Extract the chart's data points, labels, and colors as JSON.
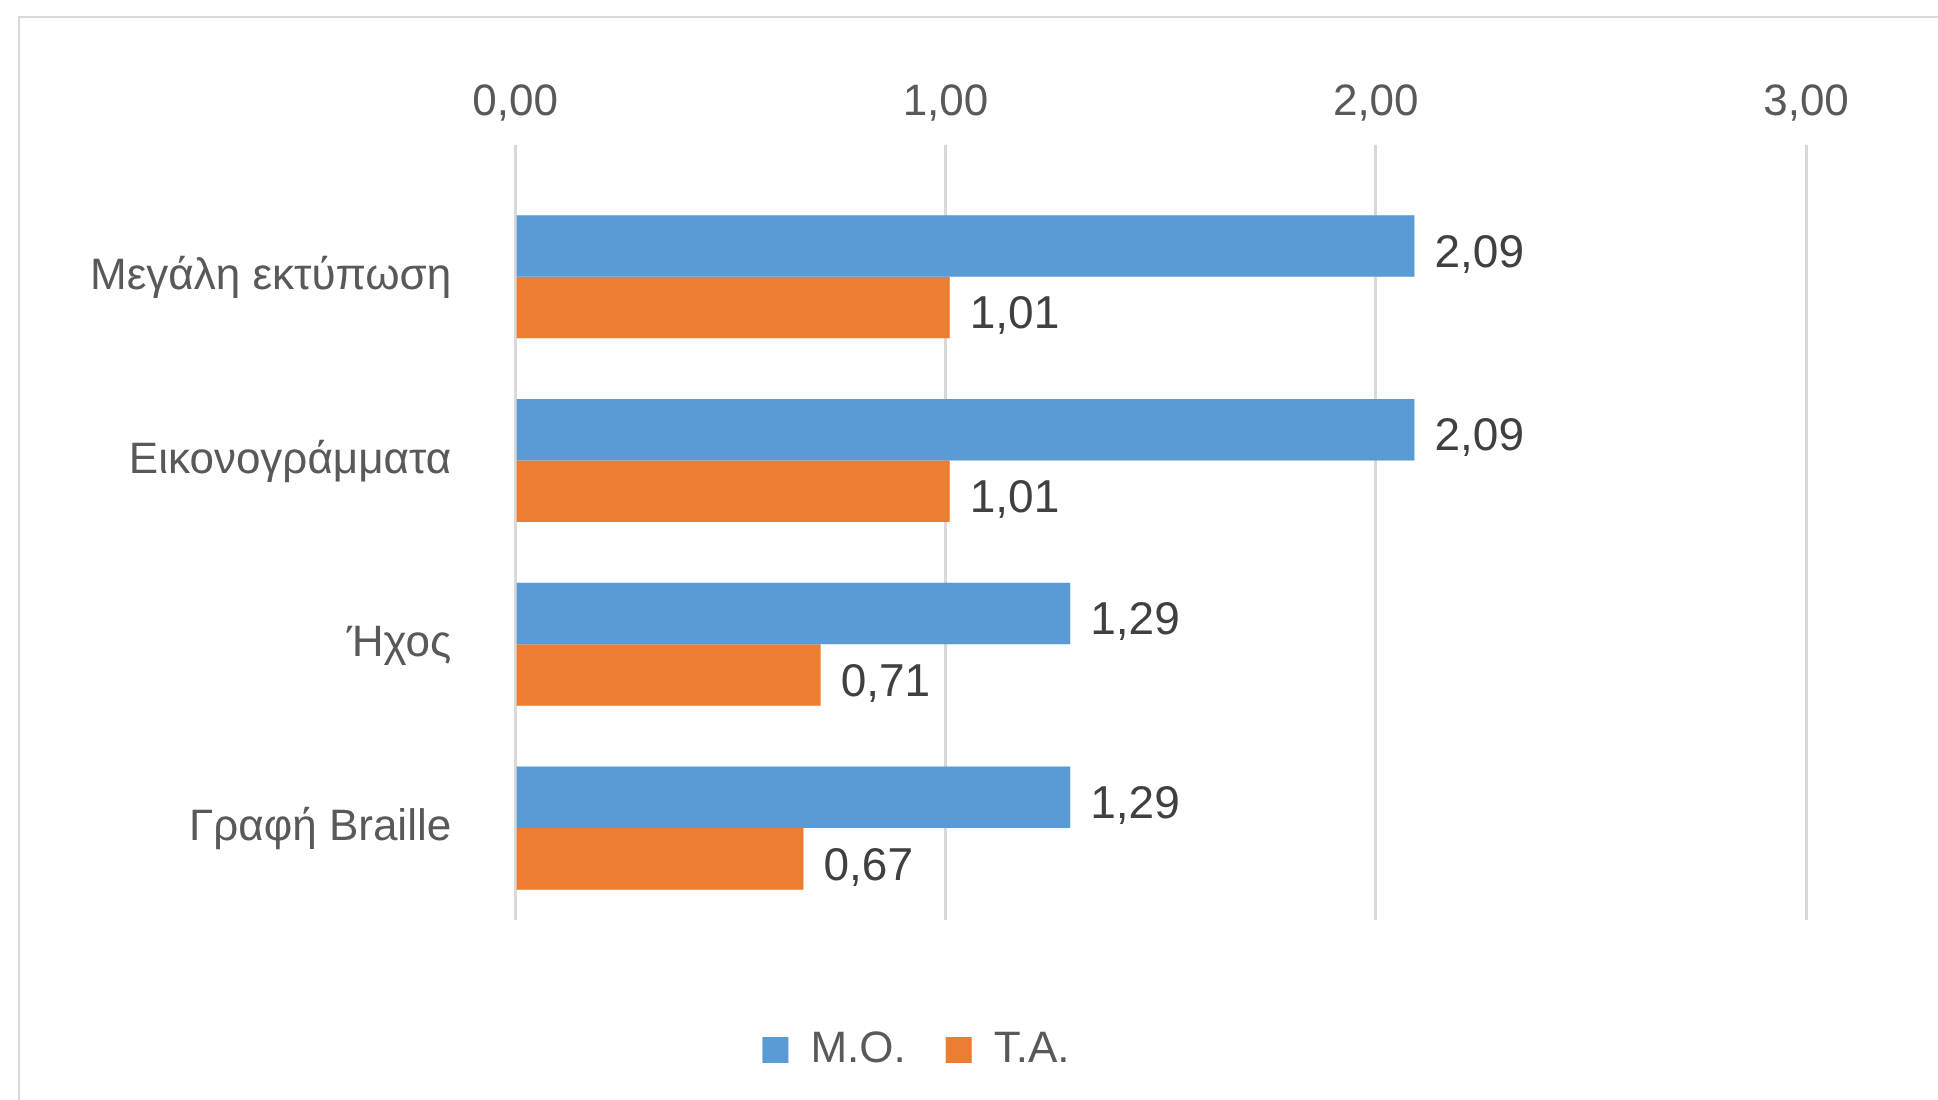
{
  "chart_data": {
    "type": "bar",
    "orientation": "horizontal",
    "categories": [
      "Μεγάλη εκτύπωση",
      "Εικονογράμματα",
      "Ήχος",
      "Γραφή Braille"
    ],
    "series": [
      {
        "name": "Μ.Ο.",
        "color": "#5b9bd5",
        "values": [
          2.09,
          2.09,
          1.29,
          1.29
        ],
        "value_labels": [
          "2,09",
          "2,09",
          "1,29",
          "1,29"
        ]
      },
      {
        "name": "Τ.Α.",
        "color": "#ed7d31",
        "values": [
          1.01,
          1.01,
          0.71,
          0.67
        ],
        "value_labels": [
          "1,01",
          "1,01",
          "0,71",
          "0,67"
        ]
      }
    ],
    "xlim": [
      0,
      3
    ],
    "xticks": [
      {
        "value": 0,
        "label": "0,00"
      },
      {
        "value": 1,
        "label": "1,00"
      },
      {
        "value": 2,
        "label": "2,00"
      },
      {
        "value": 3,
        "label": "3,00"
      }
    ],
    "grid": "x",
    "legend": "bottom"
  }
}
